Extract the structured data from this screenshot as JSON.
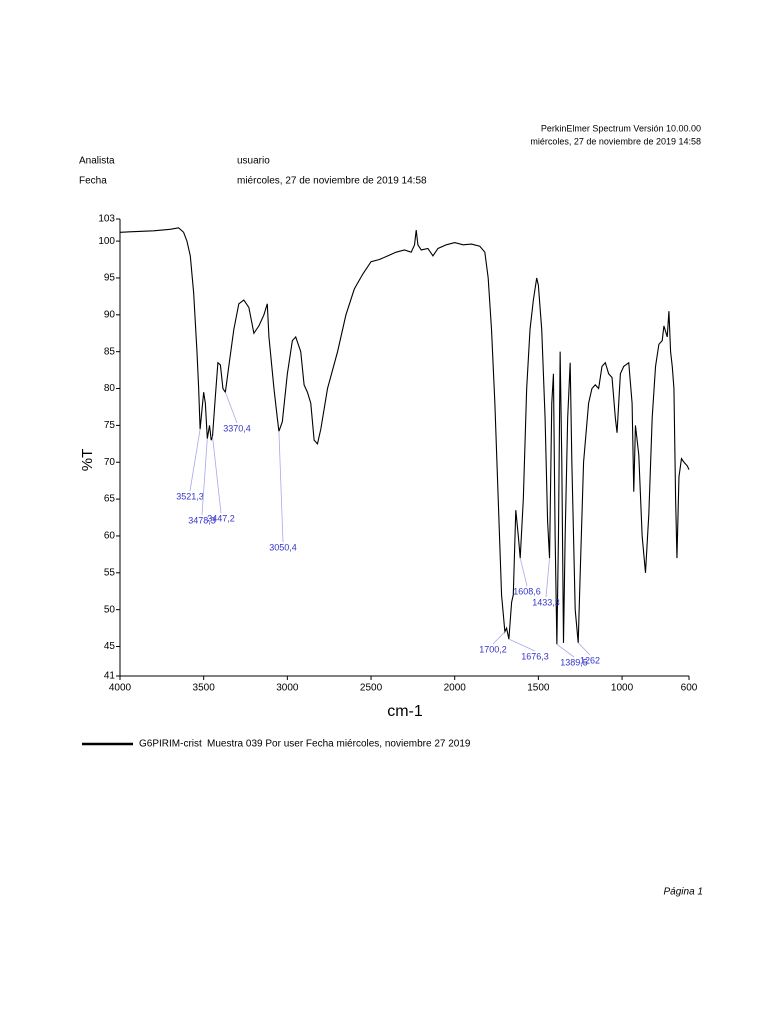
{
  "header": {
    "software": "PerkinElmer Spectrum Versión 10.00.00",
    "printed": "miércoles, 27 de noviembre de 2019 14:58"
  },
  "info": {
    "analyst_label": "Analista",
    "analyst": "usuario",
    "date_label": "Fecha",
    "date": "miércoles, 27 de noviembre de 2019 14:58"
  },
  "footer": "Página 1",
  "chart_data": {
    "type": "line",
    "xlabel": "cm-1",
    "ylabel": "%T",
    "color": "#000000",
    "xlim": [
      4000,
      600
    ],
    "ylim": [
      41,
      103
    ],
    "xticks": [
      4000,
      3500,
      3000,
      2500,
      2000,
      1500,
      1000,
      600
    ],
    "yticks": [
      41,
      45,
      50,
      55,
      60,
      65,
      70,
      75,
      80,
      85,
      90,
      95,
      100,
      103
    ],
    "x": [
      4000,
      3800,
      3700,
      3650,
      3620,
      3600,
      3580,
      3560,
      3540,
      3530,
      3521.3,
      3500,
      3490,
      3478.3,
      3465,
      3455,
      3447.2,
      3430,
      3415,
      3400,
      3385,
      3370.4,
      3350,
      3320,
      3290,
      3260,
      3230,
      3200,
      3170,
      3140,
      3120,
      3110,
      3080,
      3060,
      3050.4,
      3030,
      3000,
      2970,
      2950,
      2920,
      2900,
      2880,
      2860,
      2840,
      2820,
      2800,
      2760,
      2700,
      2650,
      2600,
      2550,
      2500,
      2450,
      2400,
      2350,
      2300,
      2260,
      2240,
      2230,
      2220,
      2200,
      2160,
      2130,
      2100,
      2050,
      2000,
      1950,
      1900,
      1850,
      1820,
      1800,
      1780,
      1760,
      1740,
      1720,
      1700.2,
      1690,
      1676.3,
      1660,
      1650,
      1635,
      1620,
      1608.6,
      1590,
      1570,
      1550,
      1530,
      1510,
      1500,
      1480,
      1460,
      1445,
      1433.3,
      1420,
      1410,
      1400,
      1389.5,
      1380,
      1370,
      1360,
      1350,
      1340,
      1325,
      1310,
      1300,
      1280,
      1262,
      1250,
      1230,
      1200,
      1180,
      1160,
      1140,
      1120,
      1100,
      1080,
      1060,
      1040,
      1030,
      1010,
      990,
      960,
      940,
      930,
      920,
      900,
      880,
      860,
      840,
      820,
      800,
      780,
      760,
      750,
      730,
      720,
      710,
      700,
      690,
      680,
      672,
      660,
      645,
      630,
      610,
      600
    ],
    "values": [
      101.2,
      101.4,
      101.6,
      101.8,
      101.2,
      100,
      98,
      93,
      85,
      80,
      74.5,
      79.5,
      78,
      73.2,
      75,
      73,
      73.5,
      79,
      83.5,
      83.2,
      80,
      79.5,
      83,
      88,
      91.5,
      92,
      91,
      87.5,
      88.5,
      90,
      91.5,
      87,
      80,
      76,
      74.2,
      75.5,
      82,
      86.5,
      87,
      85,
      80.5,
      79.5,
      78,
      73,
      72.5,
      74.5,
      80,
      85,
      90,
      93.5,
      95.5,
      97.2,
      97.5,
      98,
      98.5,
      98.8,
      98.5,
      99.5,
      101.5,
      99.5,
      98.8,
      99,
      98,
      99,
      99.5,
      99.8,
      99.5,
      99.6,
      99.3,
      98.5,
      95,
      88,
      78,
      65,
      52,
      47,
      47.5,
      46,
      51,
      52,
      63.5,
      60,
      57,
      65,
      80,
      88,
      92,
      95,
      94,
      88,
      76,
      62,
      57,
      78,
      82,
      60,
      45.3,
      60,
      85,
      70,
      45.5,
      60,
      76,
      83.5,
      70,
      50,
      45.5,
      55,
      70,
      78,
      80,
      80.5,
      80,
      83,
      83.5,
      82,
      81.5,
      76,
      74,
      82,
      83,
      83.5,
      78,
      66,
      75,
      71,
      60,
      55,
      63,
      76,
      83,
      86,
      86.5,
      88.5,
      87,
      90.5,
      85,
      83,
      80,
      65,
      57,
      68,
      70.5,
      70,
      69.5,
      69
    ],
    "annotations": [
      {
        "x": 3521.3,
        "y": 74.5,
        "label": "3521,3"
      },
      {
        "x": 3478.3,
        "y": 73.2,
        "label": "3478,3"
      },
      {
        "x": 3447.2,
        "y": 73.5,
        "label": "3447,2"
      },
      {
        "x": 3370.4,
        "y": 79.5,
        "label": "3370,4"
      },
      {
        "x": 3050.4,
        "y": 74.2,
        "label": "3050,4"
      },
      {
        "x": 1700.2,
        "y": 47,
        "label": "1700,2"
      },
      {
        "x": 1676.3,
        "y": 46,
        "label": "1676,3"
      },
      {
        "x": 1608.6,
        "y": 57,
        "label": "1608,6"
      },
      {
        "x": 1433.3,
        "y": 57,
        "label": "1433,3"
      },
      {
        "x": 1389.5,
        "y": 45.3,
        "label": "1389,5"
      },
      {
        "x": 1262,
        "y": 45.5,
        "label": "1262"
      }
    ],
    "legend": {
      "name": "G6PIRIM-crist",
      "description": "Muestra 039 Por user Fecha miércoles, noviembre 27 2019"
    }
  }
}
